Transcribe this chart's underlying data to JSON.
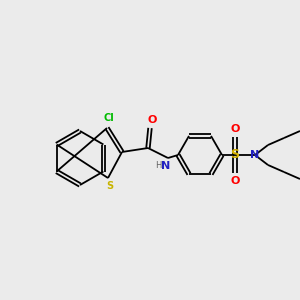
{
  "background_color": "#ebebeb",
  "atom_colors": {
    "C": "#000000",
    "N": "#2020c0",
    "O": "#ff0000",
    "S_thio": "#c8b400",
    "S_sulfo": "#d4b000",
    "Cl": "#00bb00",
    "H": "#606060"
  },
  "figsize": [
    3.0,
    3.0
  ],
  "dpi": 100
}
